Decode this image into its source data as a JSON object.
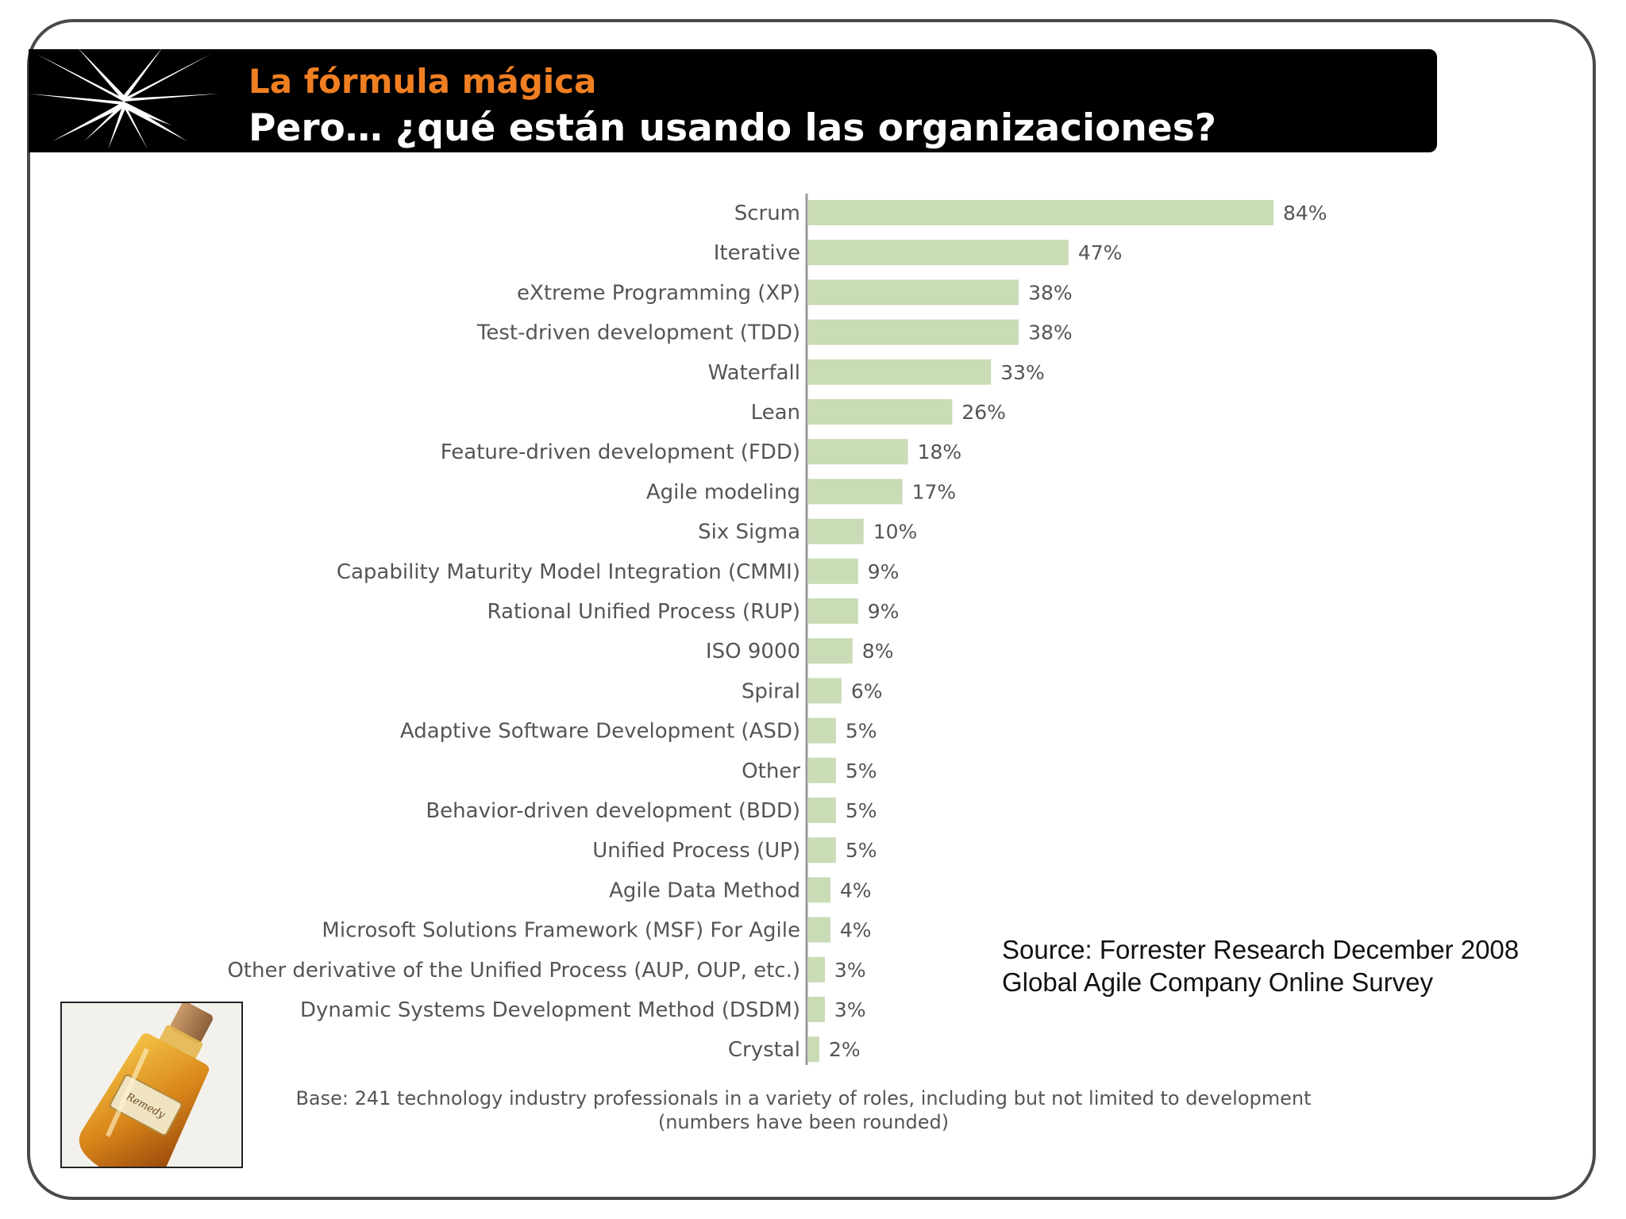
{
  "header": {
    "subtitle": "La fórmula mágica",
    "title": "Pero… ¿qué están usando las organizaciones?"
  },
  "colors": {
    "accent": "#f07f22",
    "bar": "#c9dcb6",
    "axis": "#999999"
  },
  "chart_data": {
    "type": "bar",
    "orientation": "horizontal",
    "title": "",
    "xlabel": "",
    "ylabel": "",
    "xlim": [
      0,
      84
    ],
    "categories": [
      "Scrum",
      "Iterative",
      "eXtreme Programming (XP)",
      "Test-driven development (TDD)",
      "Waterfall",
      "Lean",
      "Feature-driven development (FDD)",
      "Agile modeling",
      "Six Sigma",
      "Capability Maturity Model Integration (CMMI)",
      "Rational Unified Process (RUP)",
      "ISO 9000",
      "Spiral",
      "Adaptive Software Development (ASD)",
      "Other",
      "Behavior-driven development (BDD)",
      "Unified Process (UP)",
      "Agile Data Method",
      "Microsoft Solutions Framework (MSF) For Agile",
      "Other derivative of the Unified Process (AUP, OUP, etc.)",
      "Dynamic Systems Development Method (DSDM)",
      "Crystal"
    ],
    "values": [
      84,
      47,
      38,
      38,
      33,
      26,
      18,
      17,
      10,
      9,
      9,
      8,
      6,
      5,
      5,
      5,
      5,
      4,
      4,
      3,
      3,
      2
    ],
    "value_labels": [
      "84%",
      "47%",
      "38%",
      "38%",
      "33%",
      "26%",
      "18%",
      "17%",
      "10%",
      "9%",
      "9%",
      "8%",
      "6%",
      "5%",
      "5%",
      "5%",
      "5%",
      "4%",
      "4%",
      "3%",
      "3%",
      "2%"
    ],
    "base_note_line1": "Base: 241 technology industry professionals in a variety of roles, including but not limited to development",
    "base_note_line2": "(numbers have been rounded)"
  },
  "source": {
    "line1": "Source: Forrester Research December 2008",
    "line2": "Global Agile Company Online Survey"
  },
  "photo": {
    "label_text": "Remedy"
  }
}
